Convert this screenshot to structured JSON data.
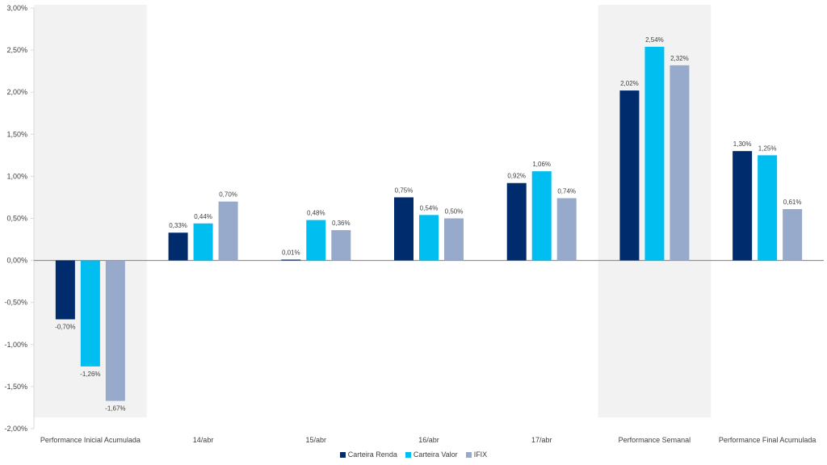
{
  "chart_data": {
    "type": "bar",
    "categories": [
      "Performance Inicial Acumulada",
      "14/abr",
      "15/abr",
      "16/abr",
      "17/abr",
      "Performance Semanal",
      "Performance Final Acumulada"
    ],
    "series": [
      {
        "name": "Carteira Renda",
        "color": "#002C6E",
        "values": [
          -0.7,
          0.33,
          0.01,
          0.75,
          0.92,
          2.02,
          1.3
        ],
        "labels": [
          "-0,70%",
          "0,33%",
          "0,01%",
          "0,75%",
          "0,92%",
          "2,02%",
          "1,30%"
        ]
      },
      {
        "name": "Carteira Valor",
        "color": "#00BEF0",
        "values": [
          -1.26,
          0.44,
          0.48,
          0.54,
          1.06,
          2.54,
          1.25
        ],
        "labels": [
          "-1,26%",
          "0,44%",
          "0,48%",
          "0,54%",
          "1,06%",
          "2,54%",
          "1,25%"
        ]
      },
      {
        "name": "IFIX",
        "color": "#98AACB",
        "values": [
          -1.67,
          0.7,
          0.36,
          0.5,
          0.74,
          2.32,
          0.61
        ],
        "labels": [
          "-1,67%",
          "0,70%",
          "0,36%",
          "0,50%",
          "0,74%",
          "2,32%",
          "0,61%"
        ]
      }
    ],
    "yticks": [
      3.0,
      2.5,
      2.0,
      1.5,
      1.0,
      0.5,
      0.0,
      -0.5,
      -1.0,
      -1.5,
      -2.0
    ],
    "ytick_labels": [
      "3,00%",
      "2,50%",
      "2,00%",
      "1,50%",
      "1,00%",
      "0,50%",
      "0,00%",
      "-0,50%",
      "-1,00%",
      "-1,50%",
      "-2,00%"
    ],
    "ylim": [
      -2.0,
      3.0
    ],
    "highlighted_categories": [
      "Performance Inicial Acumulada",
      "Performance Semanal"
    ],
    "highlight_color": "#F2F2F2",
    "grid": false,
    "legend_position": "bottom-center",
    "title": "",
    "xlabel": "",
    "ylabel": ""
  }
}
